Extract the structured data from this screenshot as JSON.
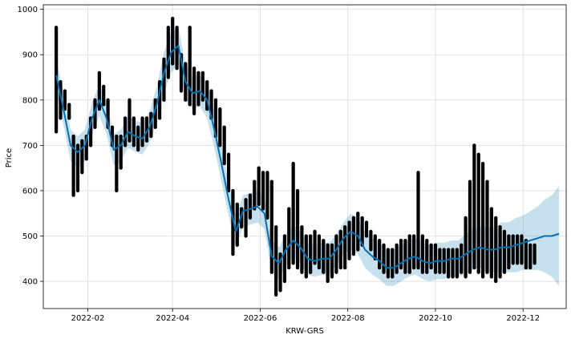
{
  "colors": {
    "forecast_line": "#0072B2",
    "interval_fill": "#0072B2",
    "observations": "#000000",
    "grid": "#dcdcdc"
  },
  "chart_data": {
    "type": "line",
    "title": "",
    "xlabel": "KRW-GRS",
    "ylabel": "Price",
    "x_type": "date",
    "xlim": [
      "2022-01-01",
      "2022-12-31"
    ],
    "ylim": [
      340,
      1010
    ],
    "grid": true,
    "x_ticks": [
      "2022-02",
      "2022-04",
      "2022-06",
      "2022-08",
      "2022-10",
      "2022-12"
    ],
    "x_tick_dates": [
      "2022-02-01",
      "2022-04-01",
      "2022-06-01",
      "2022-08-01",
      "2022-10-01",
      "2022-12-01"
    ],
    "y_ticks": [
      400,
      500,
      600,
      700,
      800,
      900,
      1000
    ],
    "series": [
      {
        "kind": "forecast",
        "x": [
          "2022-01-10",
          "2022-01-15",
          "2022-01-20",
          "2022-01-25",
          "2022-01-30",
          "2022-02-04",
          "2022-02-09",
          "2022-02-14",
          "2022-02-19",
          "2022-02-24",
          "2022-03-01",
          "2022-03-06",
          "2022-03-11",
          "2022-03-16",
          "2022-03-21",
          "2022-03-26",
          "2022-03-31",
          "2022-04-05",
          "2022-04-10",
          "2022-04-15",
          "2022-04-20",
          "2022-04-25",
          "2022-04-30",
          "2022-05-05",
          "2022-05-10",
          "2022-05-15",
          "2022-05-20",
          "2022-05-25",
          "2022-05-30",
          "2022-06-04",
          "2022-06-09",
          "2022-06-14",
          "2022-06-19",
          "2022-06-24",
          "2022-06-29",
          "2022-07-04",
          "2022-07-09",
          "2022-07-14",
          "2022-07-19",
          "2022-07-24",
          "2022-07-29",
          "2022-08-03",
          "2022-08-08",
          "2022-08-13",
          "2022-08-18",
          "2022-08-23",
          "2022-08-28",
          "2022-09-02",
          "2022-09-07",
          "2022-09-12",
          "2022-09-17",
          "2022-09-22",
          "2022-09-27",
          "2022-10-02",
          "2022-10-07",
          "2022-10-12",
          "2022-10-17",
          "2022-10-22",
          "2022-10-27",
          "2022-11-01",
          "2022-11-06",
          "2022-11-11",
          "2022-11-16",
          "2022-11-21",
          "2022-11-26",
          "2022-12-01",
          "2022-12-06",
          "2022-12-11",
          "2022-12-16",
          "2022-12-21",
          "2022-12-26"
        ],
        "yhat": [
          855,
          780,
          700,
          685,
          700,
          760,
          800,
          760,
          690,
          700,
          730,
          720,
          715,
          740,
          790,
          860,
          905,
          920,
          840,
          815,
          820,
          800,
          735,
          660,
          580,
          510,
          555,
          560,
          565,
          550,
          455,
          440,
          470,
          490,
          475,
          450,
          445,
          450,
          450,
          470,
          495,
          510,
          500,
          470,
          455,
          445,
          430,
          430,
          440,
          450,
          455,
          445,
          440,
          445,
          445,
          450,
          450,
          460,
          470,
          475,
          470,
          470,
          475,
          475,
          480,
          485,
          490,
          495,
          500,
          500,
          505
        ],
        "lower": [
          820,
          745,
          665,
          650,
          665,
          725,
          765,
          725,
          655,
          665,
          695,
          685,
          680,
          705,
          750,
          815,
          860,
          880,
          800,
          780,
          785,
          760,
          695,
          620,
          545,
          475,
          520,
          525,
          530,
          515,
          420,
          405,
          435,
          455,
          440,
          415,
          410,
          415,
          415,
          435,
          460,
          470,
          460,
          430,
          415,
          405,
          390,
          390,
          400,
          410,
          415,
          405,
          400,
          405,
          405,
          410,
          410,
          415,
          425,
          430,
          420,
          420,
          420,
          420,
          420,
          425,
          425,
          425,
          420,
          410,
          390
        ],
        "upper": [
          890,
          815,
          735,
          720,
          735,
          795,
          835,
          795,
          725,
          735,
          765,
          755,
          750,
          775,
          830,
          905,
          950,
          960,
          880,
          850,
          855,
          840,
          775,
          700,
          615,
          545,
          590,
          595,
          600,
          585,
          490,
          475,
          505,
          525,
          510,
          485,
          480,
          485,
          485,
          505,
          530,
          550,
          540,
          510,
          495,
          485,
          470,
          470,
          480,
          490,
          495,
          485,
          480,
          485,
          485,
          490,
          490,
          505,
          515,
          520,
          520,
          520,
          530,
          530,
          540,
          545,
          555,
          565,
          580,
          590,
          610
        ]
      },
      {
        "kind": "observed",
        "x": [
          "2022-01-10",
          "2022-01-13",
          "2022-01-16",
          "2022-01-19",
          "2022-01-22",
          "2022-01-25",
          "2022-01-28",
          "2022-01-31",
          "2022-02-03",
          "2022-02-06",
          "2022-02-09",
          "2022-02-12",
          "2022-02-15",
          "2022-02-18",
          "2022-02-21",
          "2022-02-24",
          "2022-02-27",
          "2022-03-02",
          "2022-03-05",
          "2022-03-08",
          "2022-03-11",
          "2022-03-14",
          "2022-03-17",
          "2022-03-20",
          "2022-03-23",
          "2022-03-26",
          "2022-03-29",
          "2022-04-01",
          "2022-04-04",
          "2022-04-07",
          "2022-04-10",
          "2022-04-13",
          "2022-04-16",
          "2022-04-19",
          "2022-04-22",
          "2022-04-25",
          "2022-04-28",
          "2022-05-01",
          "2022-05-04",
          "2022-05-07",
          "2022-05-10",
          "2022-05-13",
          "2022-05-16",
          "2022-05-19",
          "2022-05-22",
          "2022-05-25",
          "2022-05-28",
          "2022-05-31",
          "2022-06-03",
          "2022-06-06",
          "2022-06-09",
          "2022-06-12",
          "2022-06-15",
          "2022-06-18",
          "2022-06-21",
          "2022-06-24",
          "2022-06-27",
          "2022-06-30",
          "2022-07-03",
          "2022-07-06",
          "2022-07-09",
          "2022-07-12",
          "2022-07-15",
          "2022-07-18",
          "2022-07-21",
          "2022-07-24",
          "2022-07-27",
          "2022-07-30",
          "2022-08-02",
          "2022-08-05",
          "2022-08-08",
          "2022-08-11",
          "2022-08-14",
          "2022-08-17",
          "2022-08-20",
          "2022-08-23",
          "2022-08-26",
          "2022-08-29",
          "2022-09-01",
          "2022-09-04",
          "2022-09-07",
          "2022-09-10",
          "2022-09-13",
          "2022-09-16",
          "2022-09-19",
          "2022-09-22",
          "2022-09-25",
          "2022-09-28",
          "2022-10-01",
          "2022-10-04",
          "2022-10-07",
          "2022-10-10",
          "2022-10-13",
          "2022-10-16",
          "2022-10-19",
          "2022-10-22",
          "2022-10-25",
          "2022-10-28",
          "2022-10-31",
          "2022-11-03",
          "2022-11-06",
          "2022-11-09",
          "2022-11-12",
          "2022-11-15",
          "2022-11-18",
          "2022-11-21",
          "2022-11-24",
          "2022-11-27",
          "2022-11-30",
          "2022-12-03",
          "2022-12-06",
          "2022-12-09"
        ],
        "low": [
          730,
          760,
          780,
          760,
          590,
          600,
          640,
          670,
          700,
          740,
          780,
          790,
          740,
          700,
          600,
          650,
          700,
          710,
          700,
          690,
          700,
          710,
          720,
          740,
          760,
          800,
          850,
          880,
          870,
          820,
          800,
          790,
          770,
          790,
          800,
          780,
          760,
          720,
          700,
          660,
          600,
          460,
          480,
          520,
          500,
          540,
          560,
          570,
          560,
          540,
          420,
          370,
          380,
          400,
          430,
          440,
          430,
          420,
          410,
          420,
          440,
          430,
          420,
          400,
          410,
          420,
          430,
          430,
          450,
          460,
          470,
          480,
          500,
          470,
          450,
          430,
          420,
          410,
          410,
          420,
          430,
          420,
          420,
          430,
          430,
          420,
          420,
          430,
          420,
          420,
          420,
          410,
          410,
          410,
          420,
          410,
          420,
          430,
          420,
          410,
          420,
          410,
          400,
          410,
          420,
          430,
          440,
          440,
          440,
          430,
          430,
          440
        ],
        "high": [
          960,
          840,
          820,
          790,
          720,
          700,
          710,
          720,
          760,
          800,
          860,
          830,
          800,
          740,
          720,
          720,
          760,
          800,
          760,
          740,
          760,
          760,
          770,
          800,
          840,
          890,
          960,
          980,
          960,
          900,
          880,
          960,
          870,
          860,
          860,
          840,
          820,
          800,
          780,
          740,
          680,
          600,
          570,
          560,
          580,
          590,
          620,
          650,
          640,
          640,
          620,
          520,
          460,
          500,
          560,
          660,
          600,
          520,
          500,
          500,
          510,
          500,
          490,
          480,
          480,
          500,
          510,
          520,
          530,
          540,
          550,
          540,
          530,
          510,
          500,
          490,
          480,
          470,
          470,
          480,
          490,
          490,
          500,
          500,
          640,
          500,
          490,
          480,
          480,
          470,
          470,
          470,
          470,
          470,
          480,
          540,
          620,
          700,
          680,
          660,
          620,
          560,
          540,
          520,
          510,
          500,
          500,
          500,
          500,
          490,
          480,
          480
        ]
      }
    ]
  }
}
